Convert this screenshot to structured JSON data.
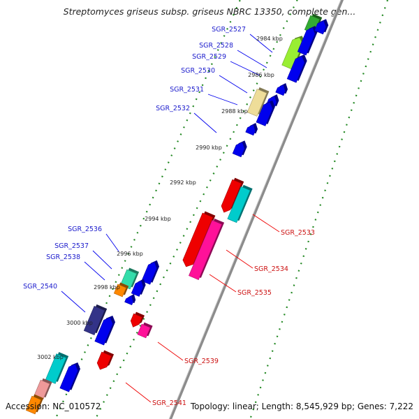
{
  "header": {
    "title": "Streptomyces griseus subsp. griseus NBRC 13350, complete gen..."
  },
  "footer": {
    "accession": "Accession: NC_010572",
    "summary": "Topology: linear; Length: 8,545,929 bp; Genes: 7,222"
  },
  "colors": {
    "forward_strand": "#0000ee",
    "reverse_strand": "#ee0000",
    "backbone": "#8c8c8c",
    "tick_dots": "#228822"
  },
  "ticks": [
    "2984 kbp",
    "2986 kbp",
    "2988 kbp",
    "2990 kbp",
    "2992 kbp",
    "2994 kbp",
    "2996 kbp",
    "2998 kbp",
    "3000 kbp",
    "3002 kbp"
  ],
  "genes_forward": [
    "SGR_2527",
    "SGR_2528",
    "SGR_2529",
    "SGR_2530",
    "SGR_2531",
    "SGR_2532",
    "SGR_2536",
    "SGR_2537",
    "SGR_2538",
    "SGR_2540"
  ],
  "genes_reverse": [
    "SGR_2533",
    "SGR_2534",
    "SGR_2535",
    "SGR_2539",
    "SGR_2541"
  ]
}
